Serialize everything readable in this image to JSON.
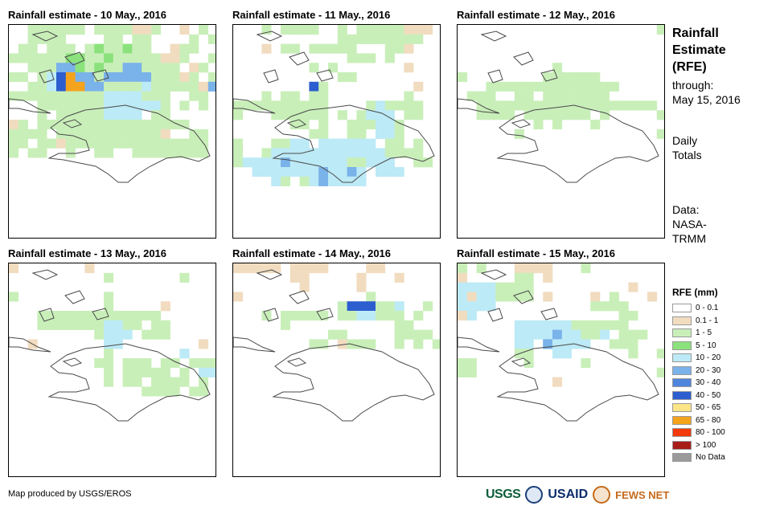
{
  "panels": [
    {
      "title": "Rainfall estimate - 10 May., 2016",
      "key": "d10"
    },
    {
      "title": "Rainfall estimate - 11 May., 2016",
      "key": "d11"
    },
    {
      "title": "Rainfall estimate - 12 May., 2016",
      "key": "d12"
    },
    {
      "title": "Rainfall estimate - 13 May., 2016",
      "key": "d13"
    },
    {
      "title": "Rainfall estimate - 14 May., 2016",
      "key": "d14"
    },
    {
      "title": "Rainfall estimate - 15 May., 2016",
      "key": "d15"
    }
  ],
  "sidebar": {
    "title_line1": "Rainfall",
    "title_line2": "Estimate",
    "title_line3": "(RFE)",
    "through_label": "through:",
    "through_date": "May 15, 2016",
    "totals_line1": "Daily",
    "totals_line2": "Totals",
    "data_line1": "Data:",
    "data_line2": "NASA-",
    "data_line3": "TRMM"
  },
  "legend": {
    "title": "RFE (mm)",
    "items": [
      {
        "label": "0 - 0.1",
        "color": "#ffffff"
      },
      {
        "label": "0.1 - 1",
        "color": "#f1dcc0"
      },
      {
        "label": "1 - 5",
        "color": "#c9efb9"
      },
      {
        "label": "5 - 10",
        "color": "#8be27c"
      },
      {
        "label": "10 - 20",
        "color": "#bceaf6"
      },
      {
        "label": "20 - 30",
        "color": "#7ab2ea"
      },
      {
        "label": "30 - 40",
        "color": "#4f86dd"
      },
      {
        "label": "40 - 50",
        "color": "#2c5ecf"
      },
      {
        "label": "50 - 65",
        "color": "#fbe586"
      },
      {
        "label": "65 - 80",
        "color": "#f4a31d"
      },
      {
        "label": "80 - 100",
        "color": "#f23a0c"
      },
      {
        "label": "> 100",
        "color": "#a71d18"
      },
      {
        "label": "No Data",
        "color": "#9a9a9a"
      }
    ]
  },
  "footer": {
    "credit": "Map produced by USGS/EROS",
    "logo_usgs": "USGS",
    "logo_usaid": "USAID",
    "logo_fews": "FEWS NET"
  },
  "grids": {
    "d10": [
      "..111111.1111001..0.1.",
      "..1111....11.11....1.1",
      ".11.111.1211211..011..",
      "1111112211211111001..1",
      "..1115521211331111.01.",
      "11.14785515555511101.1",
      "..11478855111141111105",
      "11111111114444111..11.",
      "...11111114444441.1.1.",
      "...1.111114444.11.....",
      "01.1111111111111111...",
      "1111.111111111110..11.",
      "11.110111111111111111.",
      "1.11..1..11..11111111."
    ],
    "d11": [
      "...1.1111..1.11111000.",
      "...........111111111..",
      "...0.11.11111...110...",
      "............111.1.....",
      "........1.1.......0...",
      "...........11.........",
      "........71.........0..",
      "...1.11.11........1...",
      "1111111111....141111..",
      "1...111111.1.1444.11..",
      "......11.1..111441....",
      "........11..11.441....",
      "1...1144.444444.11.1..",
      "1..14444444444441111..",
      "14444544444411444..11.",
      "..444444454454.444....",
      "....41.1454444........"
    ],
    "d12": [
      ".....................1",
      "......................",
      "......................",
      "......................",
      "..........1...........",
      "1........111111.......",
      "...11111111111111.....",
      ".111..11.1111111......",
      "..1111111111111111111.",
      "..1111.1111111.1.....1",
      "........1.1...1.......",
      "......1..............1"
    ],
    "d13": [
      "0.......0.............",
      "..........1.......1...",
      "......................",
      "1.........1...........",
      "..........1.....0.....",
      "...1111111111111......",
      "...11111114411.11.....",
      ".........1444.111.....",
      "..0.......44........0.",
      "..........1.......4...",
      ".........11.111.11.111",
      "..........1.11111.1.44",
      "..........1.11.1111.1.",
      "..............1111.11."
    ],
    "d14": [
      "00000.0000....00......",
      "......00.....0...0....",
      ".......0.....0........",
      "0.............1.......",
      "...........1777114..1.",
      "...1.11111.1144111.1..",
      ".....1...........11...",
      "..........11.....1111.",
      "........11.0111..1.1.1"
    ],
    "d15": [
      "1.1...0000...1.......",
      "0.....11.0...........",
      "44441111..........0...",
      "40441111.0....0.1...0.",
      "4444..........1111....",
      "04...............11...",
      "......444444111111....",
      "......4444544114.111..",
      "......44.54444..111...",
      "......11..44......1..1",
      "11.....1.....1........",
      "11...................1",
      "..........0..........."
    ]
  }
}
